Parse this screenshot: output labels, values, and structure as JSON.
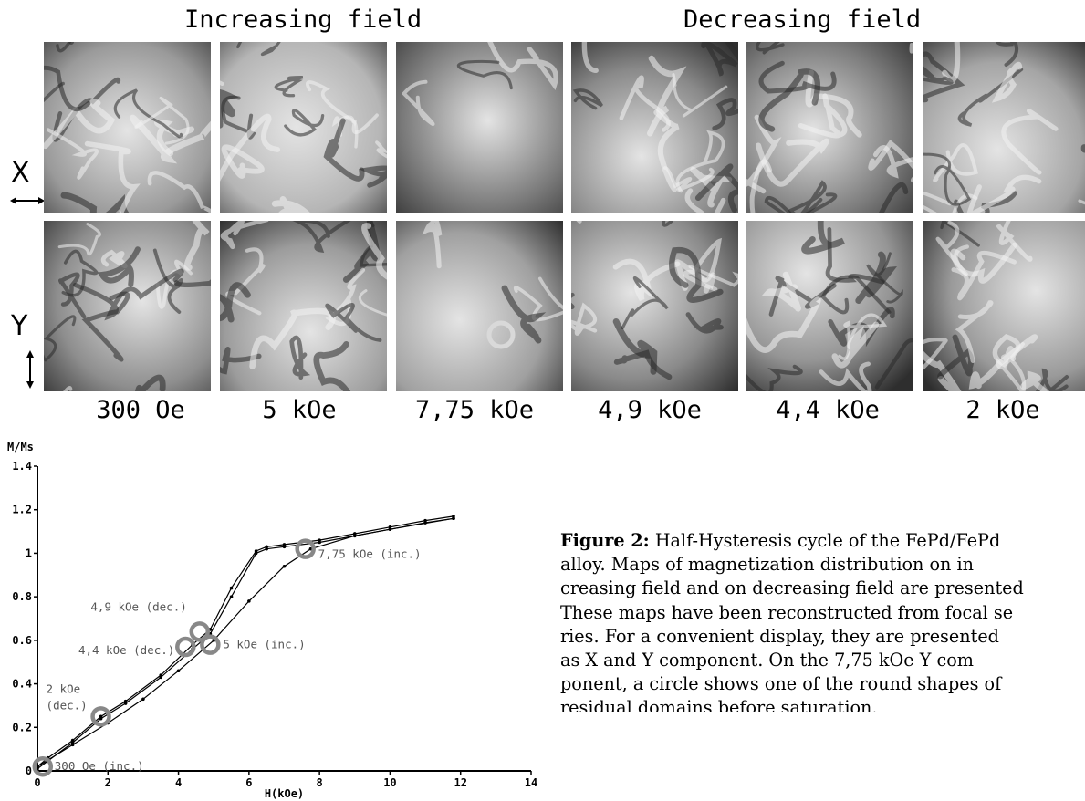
{
  "figure": {
    "group_titles": [
      "Increasing field",
      "Decreasing field"
    ],
    "row_labels": [
      "X",
      "Y"
    ],
    "arrow_icons": [
      "horizontal-double-arrow-icon",
      "vertical-double-arrow-icon"
    ],
    "field_labels": [
      "300 Oe",
      "5 kOe",
      "7,75 kOe",
      "4,9 kOe",
      "4,4 kOe",
      "2 kOe"
    ]
  },
  "chart_data": {
    "type": "line",
    "xlabel": "H(kOe)",
    "ylabel": "M/Ms",
    "xlim": [
      0,
      14
    ],
    "ylim": [
      0,
      1.4
    ],
    "x_ticks": [
      0,
      2,
      4,
      6,
      8,
      10,
      12,
      14
    ],
    "y_ticks": [
      0,
      0.2,
      0.4,
      0.6,
      0.8,
      1,
      1.2,
      1.4
    ],
    "y_tick_labels": [
      "0",
      "0.2",
      "0.4",
      "0.6",
      "0.8",
      "1",
      "1.2",
      "1.4"
    ],
    "grid": false,
    "series": [
      {
        "x": [
          0,
          1,
          2,
          3,
          4,
          5,
          6,
          7,
          7.75,
          9,
          10,
          11,
          11.8
        ],
        "y": [
          0.02,
          0.12,
          0.22,
          0.33,
          0.46,
          0.6,
          0.78,
          0.94,
          1.02,
          1.08,
          1.11,
          1.14,
          1.16
        ]
      },
      {
        "x": [
          11.8,
          11,
          10,
          9,
          8,
          7,
          6.5,
          6.2,
          5.5,
          4.9,
          4.4,
          3.5,
          2.5,
          1.8,
          1,
          0.3,
          0
        ],
        "y": [
          1.17,
          1.15,
          1.12,
          1.09,
          1.06,
          1.04,
          1.03,
          1.01,
          0.84,
          0.65,
          0.58,
          0.44,
          0.32,
          0.25,
          0.14,
          0.06,
          0.02
        ]
      },
      {
        "x": [
          11.8,
          10,
          8,
          7,
          6.5,
          6.2,
          5.5,
          4.9,
          4.4,
          3.5,
          2.5,
          1.8,
          1,
          0
        ],
        "y": [
          1.16,
          1.11,
          1.05,
          1.03,
          1.02,
          1.0,
          0.8,
          0.63,
          0.56,
          0.43,
          0.31,
          0.24,
          0.13,
          0.01
        ]
      }
    ],
    "markers": [
      {
        "x": 0.15,
        "y": 0.02,
        "label": "300 Oe (inc.)"
      },
      {
        "x": 4.9,
        "y": 0.58,
        "label": "5 kOe (inc.)"
      },
      {
        "x": 7.6,
        "y": 1.02,
        "label": "7,75 kOe (inc.)"
      },
      {
        "x": 4.6,
        "y": 0.64,
        "label": "4,9 kOe (dec.)"
      },
      {
        "x": 4.2,
        "y": 0.57,
        "label": "4,4 kOe (dec.)"
      },
      {
        "x": 1.8,
        "y": 0.25,
        "label": "2 kOe\n(dec.)"
      }
    ]
  },
  "caption": {
    "label": "Figure 2:",
    "lines": [
      " Half-Hysteresis cycle of the FePd/FePd",
      "alloy.  Maps of magnetization distribution on in",
      "creasing field and on decreasing field are presented",
      "These maps have been reconstructed from focal se",
      "ries.  For a convenient display, they are presented",
      "as X and Y component.  On the 7,75 kOe Y com",
      "ponent, a circle shows one of the round shapes of",
      "residual domains before saturation."
    ]
  },
  "colors": {
    "marker_circle": "#888888",
    "residual_circle": "#d9d9d9",
    "label_gray": "#555555"
  }
}
